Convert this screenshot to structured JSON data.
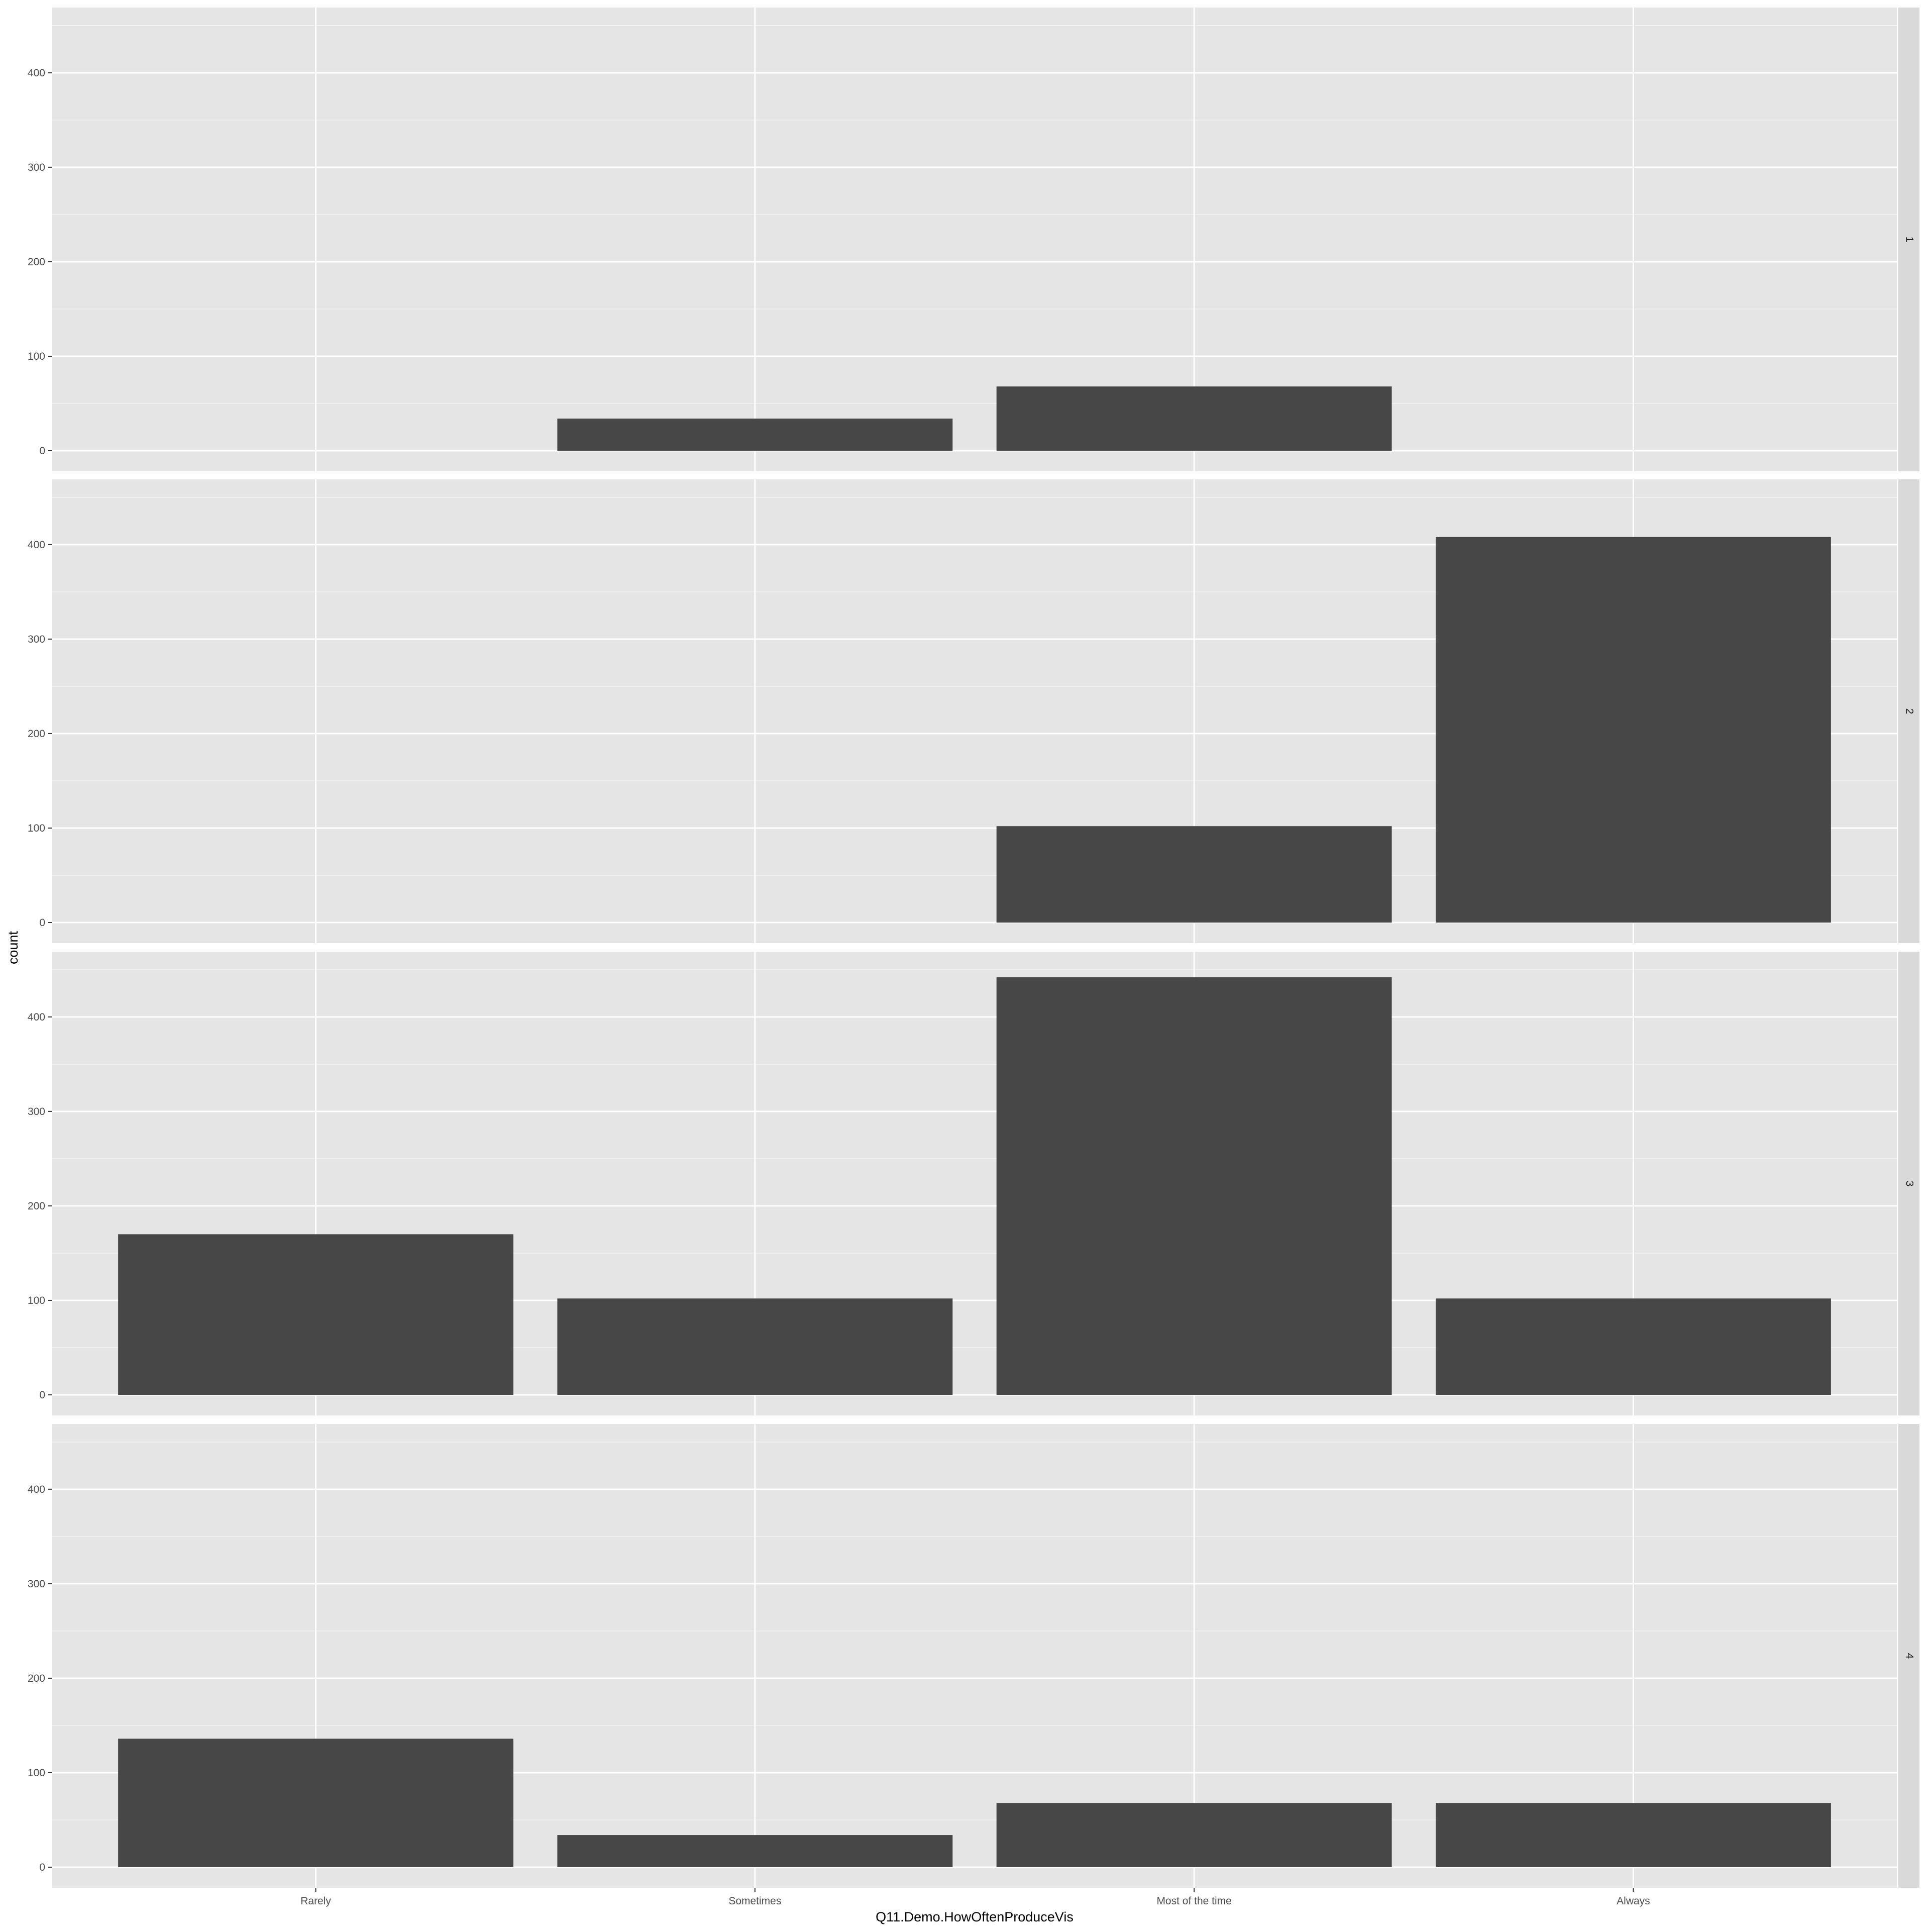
{
  "chart_data": {
    "type": "bar",
    "xlabel": "Q11.Demo.HowOftenProduceVis",
    "ylabel": "count",
    "categories": [
      "Rarely",
      "Sometimes",
      "Most of the time",
      "Always"
    ],
    "ylim": [
      0,
      460
    ],
    "yticks": [
      0,
      100,
      200,
      300,
      400
    ],
    "grid": true,
    "facets": [
      {
        "label": "1",
        "values": [
          0,
          34,
          68,
          0
        ]
      },
      {
        "label": "2",
        "values": [
          0,
          0,
          102,
          408
        ]
      },
      {
        "label": "3",
        "values": [
          170,
          102,
          442,
          102
        ]
      },
      {
        "label": "4",
        "values": [
          136,
          34,
          68,
          68
        ]
      }
    ]
  },
  "colors": {
    "panel_background": "#e5e5e5",
    "grid_major": "#ffffff",
    "bar_fill": "#474747",
    "strip_background": "#d9d9d9"
  }
}
